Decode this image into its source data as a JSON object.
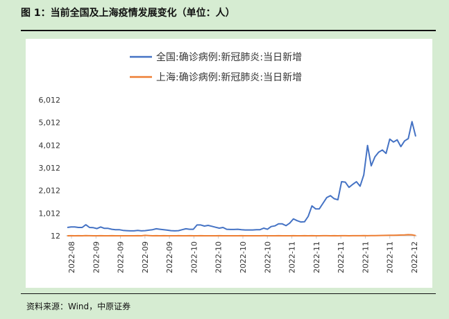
{
  "figure": {
    "title": "图 1：当前全国及上海疫情发展变化（单位：人）",
    "source": "资料来源：Wind，中原证券"
  },
  "chart_data": {
    "type": "line",
    "title": "",
    "xlabel": "",
    "ylabel": "",
    "ylim": [
      12,
      6012
    ],
    "y_ticks": [
      "6,012",
      "5,012",
      "4,012",
      "3,012",
      "2,012",
      "1,012",
      "12"
    ],
    "y_tick_values": [
      6012,
      5012,
      4012,
      3012,
      2012,
      1012,
      12
    ],
    "x_tick_labels": [
      "2022-08",
      "2022-09",
      "2022-09",
      "2022-09",
      "2022-09",
      "2022-10",
      "2022-10",
      "2022-10",
      "2022-10",
      "2022-11",
      "2022-11",
      "2022-11",
      "2022-11",
      "2022-11",
      "2022-12"
    ],
    "grid": false,
    "legend_position": "top",
    "series": [
      {
        "name": "全国:确诊病例:新冠肺炎:当日新增",
        "color": "#4472c4",
        "values": [
          380,
          400,
          400,
          380,
          380,
          500,
          380,
          370,
          330,
          400,
          340,
          340,
          300,
          280,
          280,
          250,
          240,
          230,
          230,
          250,
          230,
          240,
          260,
          280,
          320,
          300,
          280,
          260,
          240,
          230,
          240,
          280,
          320,
          300,
          300,
          490,
          490,
          440,
          470,
          430,
          390,
          350,
          380,
          300,
          290,
          290,
          300,
          280,
          270,
          270,
          270,
          280,
          280,
          350,
          300,
          420,
          450,
          540,
          540,
          460,
          570,
          760,
          680,
          620,
          630,
          870,
          1330,
          1200,
          1200,
          1450,
          1700,
          1780,
          1650,
          1600,
          2400,
          2380,
          2150,
          2280,
          2400,
          2200,
          2700,
          4000,
          3100,
          3500,
          3700,
          3800,
          3650,
          4280,
          4150,
          4250,
          3950,
          4200,
          4300,
          5050,
          4400
        ]
      },
      {
        "name": "上海:确诊病例:新冠肺炎:当日新增",
        "color": "#ed7d31",
        "values": [
          12,
          14,
          13,
          15,
          12,
          18,
          14,
          13,
          12,
          15,
          13,
          12,
          14,
          12,
          13,
          12,
          12,
          13,
          12,
          14,
          12,
          30,
          20,
          12,
          14,
          12,
          15,
          13,
          12,
          12,
          14,
          13,
          12,
          15,
          12,
          13,
          14,
          12,
          13,
          12,
          12,
          14,
          13,
          12,
          12,
          13,
          12,
          14,
          12,
          12,
          13,
          12,
          12,
          14,
          12,
          13,
          12,
          15,
          12,
          13,
          12,
          14,
          12,
          13,
          15,
          12,
          14,
          13,
          12,
          16,
          14,
          13,
          15,
          12,
          16,
          14,
          13,
          15,
          16,
          14,
          18,
          16,
          20,
          22,
          25,
          28,
          30,
          32,
          35,
          40,
          45,
          50,
          60,
          55,
          20
        ]
      }
    ]
  }
}
